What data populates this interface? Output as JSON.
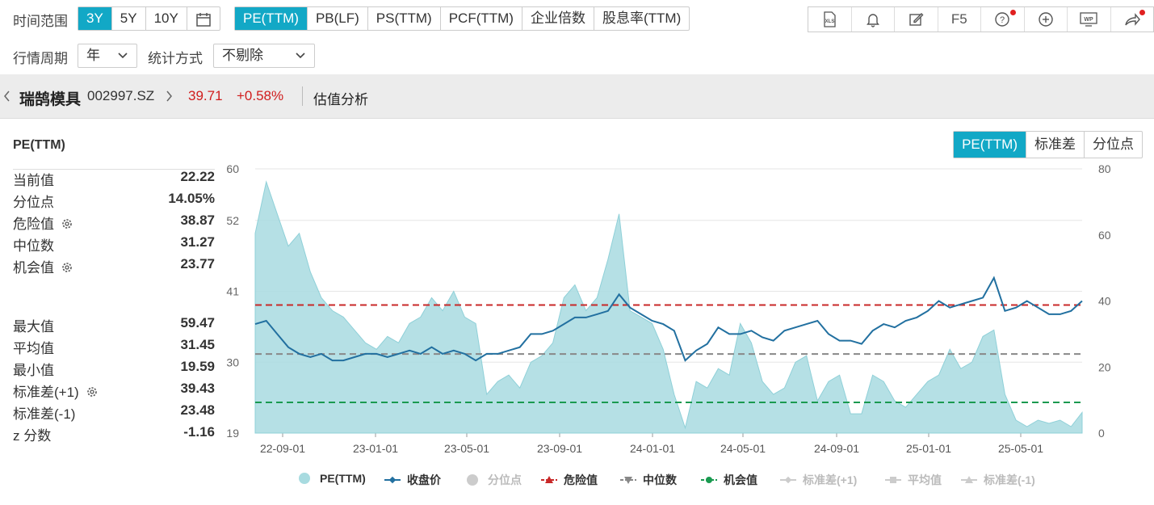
{
  "toolbar": {
    "time_range_label": "时间范围",
    "ranges": [
      "3Y",
      "5Y",
      "10Y"
    ],
    "active_range": "3Y",
    "metrics": [
      "PE(TTM)",
      "PB(LF)",
      "PS(TTM)",
      "PCF(TTM)",
      "企业倍数",
      "股息率(TTM)"
    ],
    "active_metric": "PE(TTM)",
    "tools": [
      "xls-icon",
      "bell-icon",
      "edit-icon",
      "F5",
      "help-icon",
      "plus-circle-icon",
      "wp-icon",
      "share-icon"
    ],
    "f5_label": "F5"
  },
  "filters": {
    "period_label": "行情周期",
    "period_value": "年",
    "stat_label": "统计方式",
    "stat_value": "不剔除"
  },
  "stock": {
    "name": "瑞鹄模具",
    "code": "002997.SZ",
    "price": "39.71",
    "change": "+0.58%",
    "page_title": "估值分析"
  },
  "panel": {
    "title": "PE(TTM)",
    "views": [
      "PE(TTM)",
      "标准差",
      "分位点"
    ],
    "active_view": "PE(TTM)"
  },
  "stats": [
    {
      "label": "当前值",
      "value": "22.22",
      "gear": false
    },
    {
      "label": "分位点",
      "value": "14.05%",
      "gear": false
    },
    {
      "label": "危险值",
      "value": "38.87",
      "gear": true
    },
    {
      "label": "中位数",
      "value": "31.27",
      "gear": false
    },
    {
      "label": "机会值",
      "value": "23.77",
      "gear": true
    },
    {
      "label": "最大值",
      "value": "59.47",
      "gear": false
    },
    {
      "label": "平均值",
      "value": "31.45",
      "gear": false
    },
    {
      "label": "最小值",
      "value": "19.59",
      "gear": false
    },
    {
      "label": "标准差(+1)",
      "value": "39.43",
      "gear": true
    },
    {
      "label": "标准差(-1)",
      "value": "23.48",
      "gear": false
    },
    {
      "label": "z 分数",
      "value": "-1.16",
      "gear": false
    }
  ],
  "chart_data": {
    "type": "area",
    "x_ticks": [
      "22-09-01",
      "23-01-01",
      "23-05-01",
      "23-09-01",
      "24-01-01",
      "24-05-01",
      "24-09-01",
      "25-01-01",
      "25-05-01"
    ],
    "y_left_ticks": [
      "60",
      "52",
      "41",
      "30",
      "19"
    ],
    "y_right_ticks": [
      "80",
      "60",
      "40",
      "20",
      "0"
    ],
    "y_left_range": [
      19,
      60
    ],
    "y_right_range": [
      0,
      80
    ],
    "series": [
      {
        "name": "PE(TTM)",
        "axis": "left",
        "color": "#a8dbe0",
        "x": [
          "22-08",
          "22-08",
          "22-09",
          "22-09",
          "22-09",
          "22-10",
          "22-10",
          "22-10",
          "22-11",
          "22-11",
          "22-11",
          "22-12",
          "22-12",
          "23-01",
          "23-01",
          "23-02",
          "23-02",
          "23-03",
          "23-03",
          "23-04",
          "23-04",
          "23-05",
          "23-05",
          "23-06",
          "23-06",
          "23-07",
          "23-07",
          "23-08",
          "23-08",
          "23-09",
          "23-09",
          "23-10",
          "23-10",
          "23-10",
          "23-11",
          "23-11",
          "23-12",
          "23-12",
          "24-01",
          "24-01",
          "24-02",
          "24-02",
          "24-03",
          "24-03",
          "24-04",
          "24-04",
          "24-05",
          "24-05",
          "24-06",
          "24-07",
          "24-07",
          "24-08",
          "24-08",
          "24-09",
          "24-09",
          "24-10",
          "24-10",
          "24-11",
          "24-11",
          "24-12",
          "24-12",
          "25-01",
          "25-01",
          "25-02",
          "25-02",
          "25-03",
          "25-03",
          "25-04",
          "25-04",
          "25-05",
          "25-05",
          "25-06",
          "25-06",
          "25-07",
          "25-07",
          "25-08"
        ],
        "values": [
          50,
          58,
          53,
          48,
          50,
          44,
          40,
          38,
          37,
          35,
          33,
          32,
          34,
          33,
          36,
          37,
          40,
          38,
          41,
          37,
          36,
          25,
          27,
          28,
          26,
          30,
          31,
          33,
          40,
          42,
          38,
          40,
          46,
          53,
          38,
          37,
          36,
          32,
          25,
          19.8,
          27,
          26,
          29,
          28,
          36,
          33,
          27,
          25,
          26,
          30,
          31,
          24,
          27,
          28,
          22,
          22,
          28,
          27,
          24,
          23,
          25,
          27,
          28,
          32,
          29,
          30,
          34,
          35,
          25,
          21,
          20,
          21,
          20.5,
          21,
          20,
          22.2
        ]
      },
      {
        "name": "收盘价",
        "axis": "right",
        "color": "#2270a0",
        "values": [
          33,
          34,
          30,
          26,
          24,
          23,
          24,
          22,
          22,
          23,
          24,
          24,
          23,
          24,
          25,
          24,
          26,
          24,
          25,
          24,
          22,
          24,
          24,
          25,
          26,
          30,
          30,
          31,
          33,
          35,
          35,
          36,
          37,
          42,
          38,
          36,
          34,
          33,
          31,
          22,
          25,
          27,
          32,
          30,
          30,
          31,
          29,
          28,
          31,
          32,
          33,
          34,
          30,
          28,
          28,
          27,
          31,
          33,
          32,
          34,
          35,
          37,
          40,
          38,
          39,
          40,
          41,
          47,
          37,
          38,
          40,
          38,
          36,
          36,
          37,
          40
        ]
      }
    ],
    "reference_lines": [
      {
        "name": "危险值",
        "value": 38.87,
        "color": "#c82828"
      },
      {
        "name": "中位数",
        "value": 31.27,
        "color": "#888888"
      },
      {
        "name": "机会值",
        "value": 23.77,
        "color": "#1a9a50"
      }
    ],
    "legend": [
      {
        "name": "PE(TTM)",
        "active": true
      },
      {
        "name": "收盘价",
        "active": true
      },
      {
        "name": "分位点",
        "active": false
      },
      {
        "name": "危险值",
        "active": true
      },
      {
        "name": "中位数",
        "active": true
      },
      {
        "name": "机会值",
        "active": true
      },
      {
        "name": "标准差(+1)",
        "active": false
      },
      {
        "name": "平均值",
        "active": false
      },
      {
        "name": "标准差(-1)",
        "active": false
      }
    ]
  }
}
